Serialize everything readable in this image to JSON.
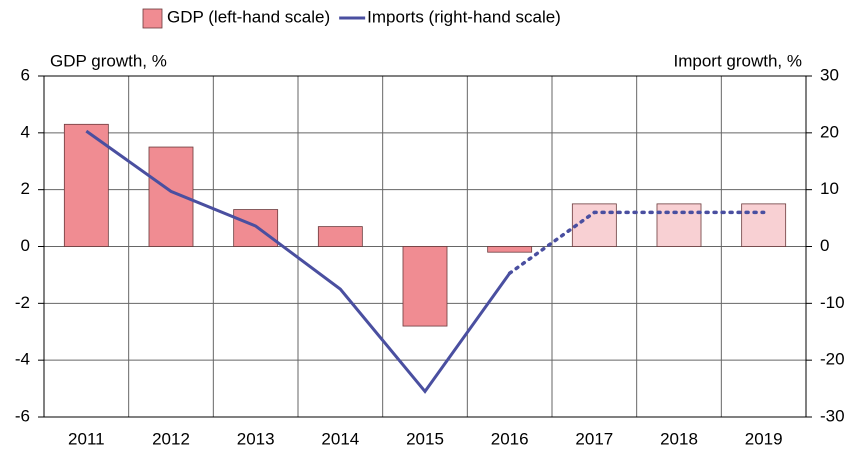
{
  "chart_data": {
    "type": "bar_line",
    "y_label": "GDP growth, %",
    "y2_label": "Import growth, %",
    "categories": [
      "2011",
      "2012",
      "2013",
      "2014",
      "2015",
      "2016",
      "2017",
      "2018",
      "2019"
    ],
    "series": [
      {
        "name": "GDP (left-hand scale)",
        "type": "bar",
        "color": "#f08c92",
        "colors": [
          "#f08c92",
          "#f08c92",
          "#f08c92",
          "#f08c92",
          "#f08c92",
          "#f08c92",
          "#f8d0d3",
          "#f8d0d3",
          "#f8d0d3"
        ],
        "values": [
          4.3,
          3.5,
          1.3,
          0.7,
          -2.8,
          -0.2,
          1.5,
          1.5,
          1.5
        ]
      },
      {
        "name": "Imports (right-hand scale)",
        "type": "line",
        "axis": "y2",
        "color": "#4a4fa0",
        "styles": [
          "solid",
          "solid",
          "solid",
          "solid",
          "solid",
          "solid",
          "dotted",
          "dotted",
          "dotted"
        ],
        "values": [
          20.3,
          9.7,
          3.6,
          -7.5,
          -25.5,
          -4.7,
          6.0,
          6.0,
          6.0
        ]
      }
    ],
    "ylim": [
      -6,
      6
    ],
    "yticks": [
      -6,
      -4,
      -2,
      0,
      2,
      4,
      6
    ],
    "y2lim": [
      -30,
      30
    ],
    "y2ticks": [
      -30,
      -20,
      -10,
      0,
      10,
      20,
      30
    ],
    "grid": true,
    "legend": "top"
  }
}
